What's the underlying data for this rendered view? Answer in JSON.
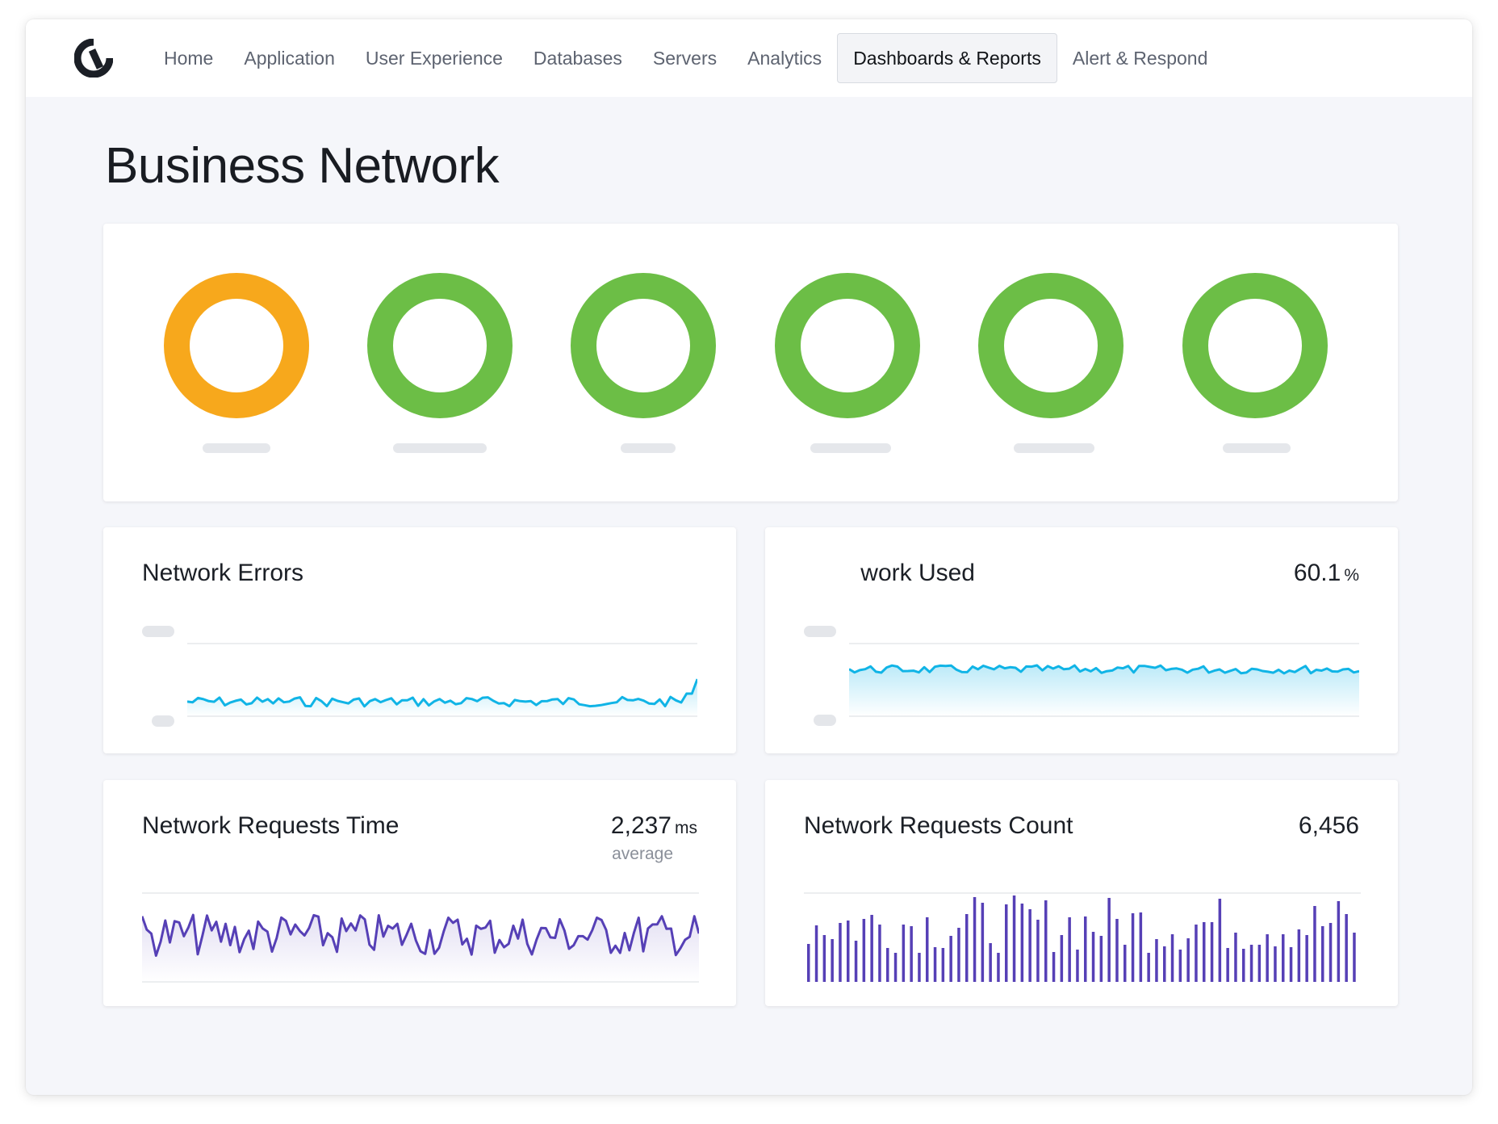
{
  "nav": {
    "items": [
      "Home",
      "Application",
      "User Experience",
      "Databases",
      "Servers",
      "Analytics",
      "Dashboards & Reports",
      "Alert & Respond"
    ],
    "active_index": 6
  },
  "page": {
    "title": "Business Network"
  },
  "status_rings": {
    "colors": [
      "#f7a81c",
      "#6cbe46",
      "#6cbe46",
      "#6cbe46",
      "#6cbe46",
      "#6cbe46"
    ]
  },
  "cards": {
    "network_errors": {
      "title": "Network Errors",
      "line_color": "#10b4e6"
    },
    "network_used": {
      "title_visible": "work Used",
      "value": "60.1",
      "unit": "%",
      "line_color": "#10b4e6"
    },
    "requests_time": {
      "title": "Network Requests Time",
      "value": "2,237",
      "unit": "ms",
      "sub": "average",
      "line_color": "#5640b6"
    },
    "requests_count": {
      "title": "Network Requests Count",
      "value": "6,456",
      "bar_color": "#5640b6"
    }
  },
  "icons": {
    "logo": "brand-logo-icon"
  }
}
